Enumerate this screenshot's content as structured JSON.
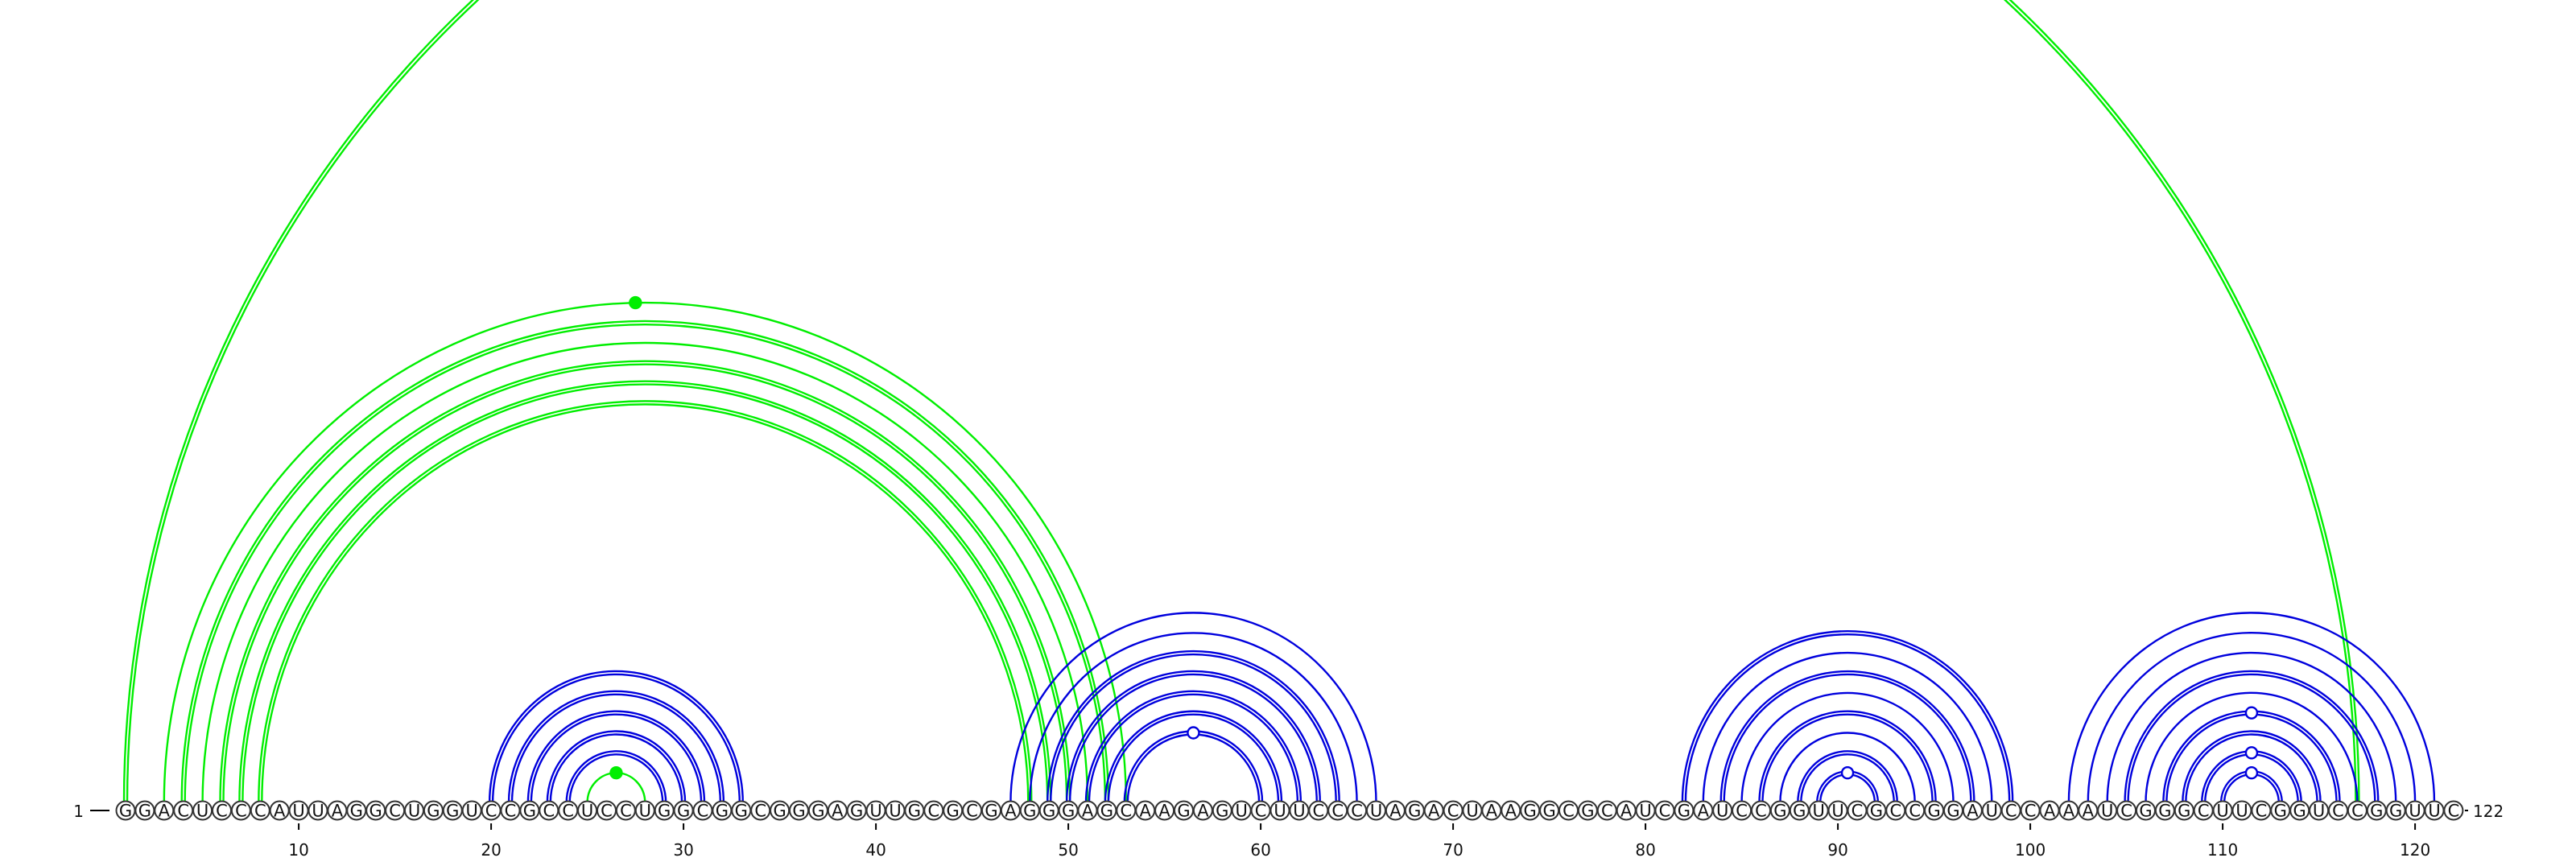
{
  "sequence": {
    "start_label": "1",
    "end_label": "122",
    "length": 122,
    "nucleotides": "GGACUCCCAUUAGGCUGGUCCGCCUCCUGGCGGCGGGAGUUGCGCGAGGGAGCAAGAGUCUUCCCUAGACUAAGGCGCAUCGAUCCGGUUCGCCGGAUCCAAAUCGGGCUUCGGUCCGGUUC"
  },
  "axis": {
    "ticks": [
      {
        "position": 10,
        "label": "10"
      },
      {
        "position": 20,
        "label": "20"
      },
      {
        "position": 30,
        "label": "30"
      },
      {
        "position": 40,
        "label": "40"
      },
      {
        "position": 50,
        "label": "50"
      },
      {
        "position": 60,
        "label": "60"
      },
      {
        "position": 70,
        "label": "70"
      },
      {
        "position": 80,
        "label": "80"
      },
      {
        "position": 90,
        "label": "90"
      },
      {
        "position": 100,
        "label": "100"
      },
      {
        "position": 110,
        "label": "110"
      },
      {
        "position": 120,
        "label": "120"
      }
    ]
  },
  "colors": {
    "primary_pairs": "#0000dd",
    "alternative_pairs": "#00ee00"
  },
  "helices": [
    {
      "name": "green-long-range",
      "color": "alternative_pairs",
      "pairs": [
        [
          1,
          117,
          2
        ],
        [
          3,
          53,
          1
        ],
        [
          4,
          52,
          2
        ],
        [
          5,
          51,
          1
        ],
        [
          6,
          50,
          2
        ],
        [
          7,
          49,
          2
        ],
        [
          8,
          48,
          2
        ]
      ],
      "marks": [
        {
          "at": 27.5,
          "offset": -0.5,
          "fill": "alternative_pairs"
        }
      ]
    },
    {
      "name": "blue-hairpin-1",
      "color": "primary_pairs",
      "pairs": [
        [
          20,
          33,
          2
        ],
        [
          21,
          32,
          2
        ],
        [
          22,
          31,
          2
        ],
        [
          23,
          30,
          2
        ],
        [
          24,
          29,
          2
        ]
      ]
    },
    {
      "name": "green-hairpin-1-loop",
      "color": "alternative_pairs",
      "pairs": [
        [
          25,
          28,
          1
        ]
      ],
      "marks": [
        {
          "at": 26.5,
          "offset": 0,
          "fill": "alternative_pairs"
        }
      ]
    },
    {
      "name": "blue-helix-2",
      "color": "primary_pairs",
      "pairs": [
        [
          47,
          66,
          1
        ],
        [
          48,
          65,
          1
        ],
        [
          49,
          64,
          2
        ],
        [
          50,
          63,
          2
        ],
        [
          51,
          62,
          2
        ],
        [
          52,
          61,
          2
        ],
        [
          53,
          60,
          2
        ]
      ],
      "marks": [
        {
          "at": 56.5,
          "offset": 0,
          "fill": "#ffffff"
        }
      ]
    },
    {
      "name": "blue-helix-3",
      "color": "primary_pairs",
      "pairs": [
        [
          82,
          99,
          2
        ],
        [
          83,
          98,
          1
        ],
        [
          84,
          97,
          2
        ],
        [
          85,
          96,
          1
        ],
        [
          86,
          95,
          2
        ],
        [
          87,
          94,
          1
        ],
        [
          88,
          93,
          2
        ],
        [
          89,
          92,
          2
        ]
      ],
      "marks": [
        {
          "at": 90.5,
          "offset": 0,
          "fill": "#ffffff"
        }
      ]
    },
    {
      "name": "blue-helix-4",
      "color": "primary_pairs",
      "pairs": [
        [
          102,
          121,
          1
        ],
        [
          103,
          120,
          1
        ],
        [
          104,
          119,
          1
        ],
        [
          105,
          118,
          2
        ],
        [
          106,
          117,
          1
        ],
        [
          107,
          116,
          2
        ],
        [
          108,
          115,
          2
        ],
        [
          109,
          114,
          2
        ],
        [
          110,
          113,
          2
        ]
      ],
      "marks": [
        {
          "at": 111.5,
          "offset": -3,
          "fill": "#ffffff"
        },
        {
          "at": 111.5,
          "offset": -1,
          "fill": "#ffffff"
        },
        {
          "at": 111.5,
          "offset": 0,
          "fill": "#ffffff"
        }
      ]
    }
  ]
}
